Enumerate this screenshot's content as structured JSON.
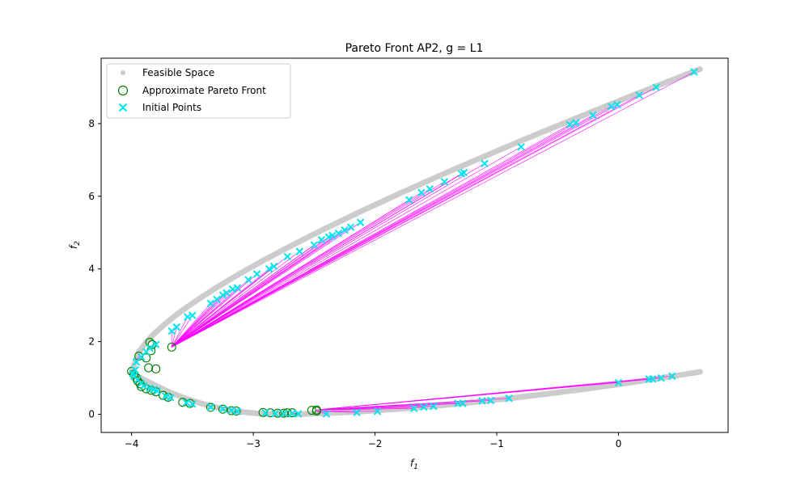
{
  "chart_data": {
    "type": "scatter",
    "title": "Pareto Front AP2, g = L1",
    "xlabel": "f",
    "xlabel_sub": "1",
    "ylabel": "f",
    "ylabel_sub": "2",
    "xlim": [
      -4.25,
      0.9
    ],
    "ylim": [
      -0.5,
      9.8
    ],
    "xticks": [
      -4,
      -3,
      -2,
      -1,
      0
    ],
    "yticks": [
      0,
      2,
      4,
      6,
      8
    ],
    "legend": {
      "placement": "top-left",
      "entries": [
        "Feasible Space",
        "Approximate Pareto Front",
        "Initial Points"
      ]
    },
    "colors": {
      "feasible": "#cccccc",
      "pareto": "#008000",
      "initial": "#00e5ee",
      "trajectory": "#ff00ff"
    },
    "feasible_space": {
      "upper_branch": {
        "x_range": [
          -4.0,
          0.67
        ],
        "apex": [
          -4.0,
          1.15
        ],
        "end": [
          0.67,
          9.5
        ]
      },
      "lower_branch": {
        "x_range": [
          -4.0,
          0.67
        ],
        "apex": [
          -4.0,
          1.15
        ],
        "min": [
          -2.75,
          0.0
        ],
        "end": [
          0.67,
          1.17
        ]
      }
    },
    "series": [
      {
        "name": "Initial Points",
        "marker": "x",
        "points": [
          [
            0.62,
            9.42
          ],
          [
            0.31,
            9.0
          ],
          [
            0.17,
            8.78
          ],
          [
            -0.01,
            8.52
          ],
          [
            -0.06,
            8.47
          ],
          [
            -0.21,
            8.23
          ],
          [
            -0.35,
            8.02
          ],
          [
            -0.4,
            7.97
          ],
          [
            -0.8,
            7.36
          ],
          [
            -1.1,
            6.9
          ],
          [
            -1.27,
            6.65
          ],
          [
            -1.29,
            6.62
          ],
          [
            -1.43,
            6.4
          ],
          [
            -1.55,
            6.2
          ],
          [
            -1.62,
            6.1
          ],
          [
            -1.72,
            5.9
          ],
          [
            -2.12,
            5.28
          ],
          [
            -2.2,
            5.15
          ],
          [
            -2.25,
            5.07
          ],
          [
            -2.3,
            4.98
          ],
          [
            -2.35,
            4.92
          ],
          [
            -2.38,
            4.88
          ],
          [
            -2.44,
            4.8
          ],
          [
            -2.5,
            4.66
          ],
          [
            -2.62,
            4.48
          ],
          [
            -2.72,
            4.34
          ],
          [
            -2.83,
            4.07
          ],
          [
            -2.87,
            4.0
          ],
          [
            -2.97,
            3.86
          ],
          [
            -3.04,
            3.7
          ],
          [
            -3.13,
            3.48
          ],
          [
            -3.17,
            3.44
          ],
          [
            -3.22,
            3.34
          ],
          [
            -3.25,
            3.28
          ],
          [
            -3.3,
            3.16
          ],
          [
            -3.35,
            3.05
          ],
          [
            -3.5,
            2.72
          ],
          [
            -3.54,
            2.68
          ],
          [
            -3.63,
            2.4
          ],
          [
            -3.67,
            2.29
          ],
          [
            -3.8,
            1.92
          ],
          [
            -3.85,
            1.82
          ],
          [
            -3.88,
            1.72
          ],
          [
            -3.92,
            1.58
          ],
          [
            -3.96,
            1.44
          ],
          [
            -3.97,
            1.22
          ],
          [
            -3.99,
            1.12
          ],
          [
            -3.98,
            1.05
          ],
          [
            -3.95,
            0.95
          ],
          [
            -3.92,
            0.85
          ],
          [
            -3.9,
            0.78
          ],
          [
            -3.85,
            0.72
          ],
          [
            -3.82,
            0.68
          ],
          [
            -3.79,
            0.64
          ],
          [
            -3.72,
            0.5
          ],
          [
            -3.68,
            0.46
          ],
          [
            -3.55,
            0.32
          ],
          [
            -3.5,
            0.28
          ],
          [
            -3.35,
            0.2
          ],
          [
            -3.25,
            0.15
          ],
          [
            -3.18,
            0.11
          ],
          [
            -3.13,
            0.08
          ],
          [
            -2.9,
            0.04
          ],
          [
            -2.82,
            0.02
          ],
          [
            -2.75,
            0.02
          ],
          [
            -2.68,
            0.02
          ],
          [
            -2.63,
            0.01
          ],
          [
            -2.4,
            0.01
          ],
          [
            -2.15,
            0.05
          ],
          [
            -1.98,
            0.08
          ],
          [
            -1.68,
            0.16
          ],
          [
            -1.6,
            0.2
          ],
          [
            -1.52,
            0.22
          ],
          [
            -1.32,
            0.3
          ],
          [
            -1.28,
            0.3
          ],
          [
            -1.12,
            0.37
          ],
          [
            -1.05,
            0.38
          ],
          [
            -0.9,
            0.44
          ],
          [
            0.0,
            0.87
          ],
          [
            0.25,
            0.97
          ],
          [
            0.28,
            0.97
          ],
          [
            0.35,
            1.0
          ],
          [
            0.44,
            1.05
          ]
        ]
      },
      {
        "name": "Approximate Pareto Front",
        "marker": "o",
        "points": [
          [
            -3.85,
            1.98
          ],
          [
            -3.83,
            1.92
          ],
          [
            -3.84,
            1.75
          ],
          [
            -3.67,
            1.85
          ],
          [
            -3.94,
            1.6
          ],
          [
            -3.88,
            1.55
          ],
          [
            -3.86,
            1.28
          ],
          [
            -3.8,
            1.25
          ],
          [
            -4.0,
            1.18
          ],
          [
            -3.98,
            1.1
          ],
          [
            -3.96,
            1.0
          ],
          [
            -3.95,
            0.92
          ],
          [
            -3.93,
            0.84
          ],
          [
            -3.92,
            0.76
          ],
          [
            -3.88,
            0.7
          ],
          [
            -3.84,
            0.66
          ],
          [
            -3.8,
            0.62
          ],
          [
            -3.74,
            0.52
          ],
          [
            -3.7,
            0.47
          ],
          [
            -3.58,
            0.33
          ],
          [
            -3.52,
            0.3
          ],
          [
            -3.35,
            0.19
          ],
          [
            -3.25,
            0.14
          ],
          [
            -3.18,
            0.1
          ],
          [
            -3.14,
            0.09
          ],
          [
            -2.92,
            0.05
          ],
          [
            -2.86,
            0.04
          ],
          [
            -2.8,
            0.03
          ],
          [
            -2.75,
            0.03
          ],
          [
            -2.72,
            0.04
          ],
          [
            -2.68,
            0.04
          ],
          [
            -2.52,
            0.11
          ],
          [
            -2.48,
            0.12
          ],
          [
            -2.48,
            0.09
          ]
        ]
      }
    ]
  }
}
